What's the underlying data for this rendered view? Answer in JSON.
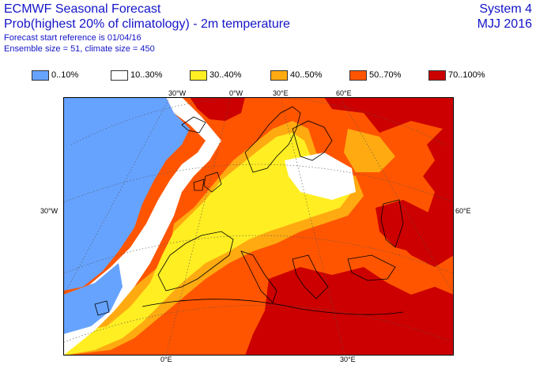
{
  "header": {
    "title": "ECMWF Seasonal Forecast",
    "subtitle": "Prob(highest 20% of climatology) - 2m temperature",
    "forecast_ref": "Forecast start reference is 01/04/16",
    "ensemble": "Ensemble size = 51, climate size = 450",
    "system": "System 4",
    "period": "MJJ 2016"
  },
  "legend": [
    {
      "label": "0..10%",
      "color": "#66a3ff"
    },
    {
      "label": "10..30%",
      "color": "#ffffff"
    },
    {
      "label": "30..40%",
      "color": "#ffee22"
    },
    {
      "label": "40..50%",
      "color": "#ffaa11"
    },
    {
      "label": "50..70%",
      "color": "#ff5500"
    },
    {
      "label": "70..100%",
      "color": "#cc0000"
    }
  ],
  "map": {
    "lon_labels_top": [
      "30°W",
      "0°W",
      "30°E",
      "60°E"
    ],
    "lon_labels_bottom": [
      "0°E",
      "30°E"
    ],
    "lat_label_left": "30°W",
    "lat_label_right": "60°E"
  }
}
